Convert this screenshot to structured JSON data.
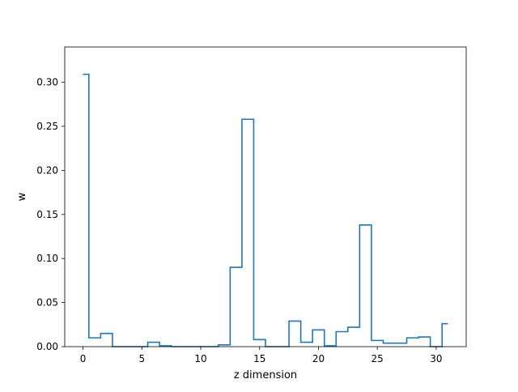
{
  "chart_data": {
    "type": "step",
    "title": "",
    "xlabel": "z dimension",
    "ylabel": "w",
    "xlim": [
      -1.55,
      32.55
    ],
    "ylim": [
      0,
      0.34
    ],
    "x_ticks": [
      0,
      5,
      10,
      15,
      20,
      25,
      30
    ],
    "y_ticks": [
      0.0,
      0.05,
      0.1,
      0.15,
      0.2,
      0.25,
      0.3
    ],
    "y_tick_labels": [
      "0.00",
      "0.05",
      "0.10",
      "0.15",
      "0.20",
      "0.25",
      "0.30"
    ],
    "step_where": "mid",
    "series": [
      {
        "color": "#1f77b4",
        "x": [
          0,
          1,
          2,
          3,
          4,
          5,
          6,
          7,
          8,
          9,
          10,
          11,
          12,
          13,
          14,
          15,
          16,
          17,
          18,
          19,
          20,
          21,
          22,
          23,
          24,
          25,
          26,
          27,
          28,
          29,
          30,
          31
        ],
        "values": [
          0.309,
          0.01,
          0.015,
          0.0,
          0.0,
          0.0,
          0.005,
          0.001,
          0.0,
          0.0,
          0.0,
          0.0,
          0.002,
          0.09,
          0.258,
          0.008,
          0.0,
          0.0,
          0.029,
          0.005,
          0.019,
          0.001,
          0.017,
          0.022,
          0.138,
          0.007,
          0.004,
          0.004,
          0.01,
          0.011,
          0.0,
          0.026
        ]
      }
    ]
  }
}
